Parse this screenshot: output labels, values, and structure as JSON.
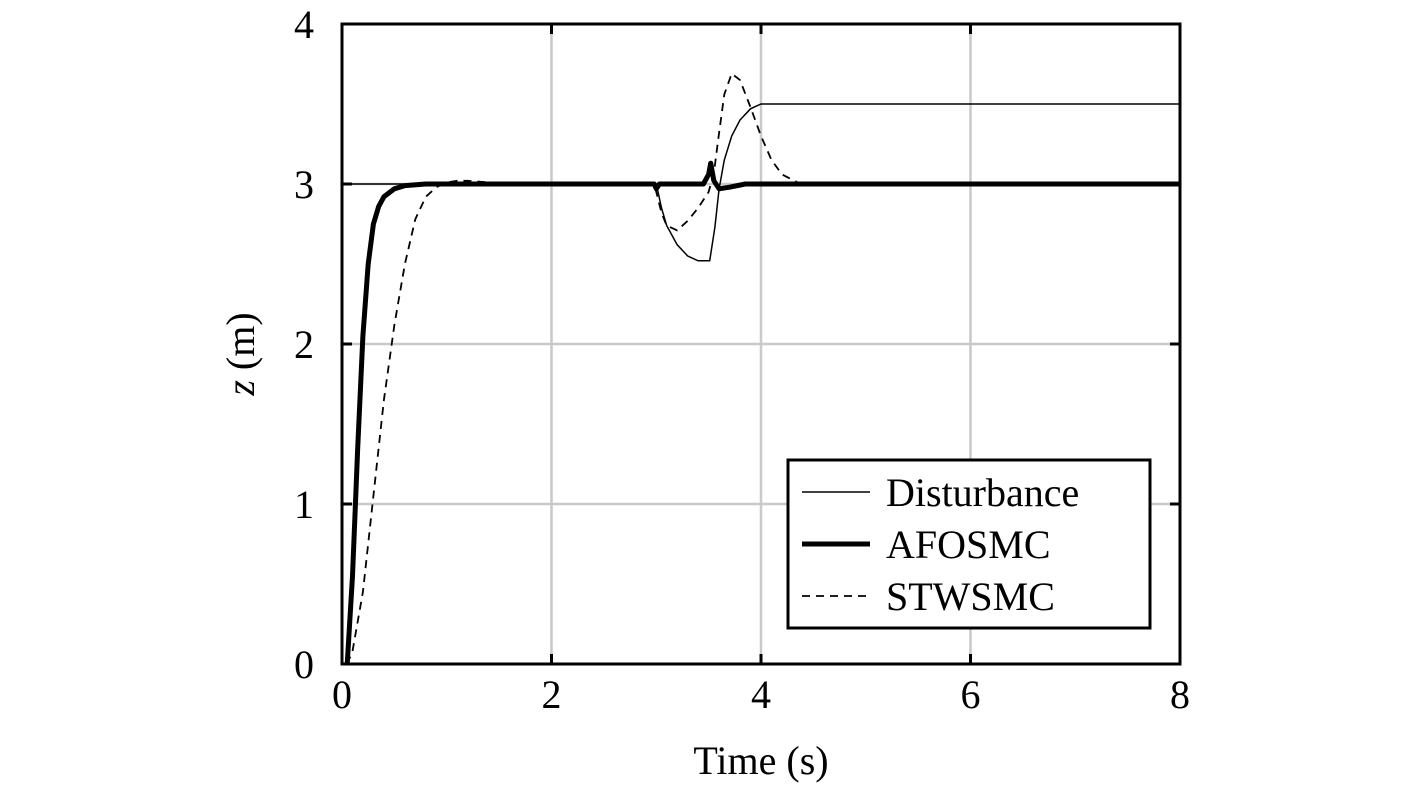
{
  "chart_data": {
    "type": "line",
    "title": "",
    "xlabel": "Time (s)",
    "ylabel": "z (m)",
    "xlabel_parts": {
      "text": "Time (s)"
    },
    "ylabel_parts": {
      "var": "z",
      "unit": " (m)"
    },
    "xlim": [
      0,
      8
    ],
    "ylim": [
      0,
      4
    ],
    "xticks": [
      0,
      2,
      4,
      6,
      8
    ],
    "yticks": [
      0,
      1,
      2,
      3,
      4
    ],
    "xtick_labels": [
      "0",
      "2",
      "4",
      "6",
      "8"
    ],
    "ytick_labels": [
      "0",
      "1",
      "2",
      "3",
      "4"
    ],
    "grid": true,
    "legend_position": "bottom-right",
    "series": [
      {
        "name": "Disturbance",
        "style": "thin-solid",
        "points": [
          [
            0,
            3.0
          ],
          [
            3.0,
            3.0
          ],
          [
            3.05,
            2.85
          ],
          [
            3.1,
            2.74
          ],
          [
            3.2,
            2.62
          ],
          [
            3.3,
            2.55
          ],
          [
            3.4,
            2.52
          ],
          [
            3.5,
            2.52
          ],
          [
            3.51,
            2.52
          ],
          [
            3.56,
            2.73
          ],
          [
            3.6,
            2.97
          ],
          [
            3.65,
            3.15
          ],
          [
            3.72,
            3.3
          ],
          [
            3.8,
            3.4
          ],
          [
            3.9,
            3.47
          ],
          [
            4.0,
            3.5
          ],
          [
            8.0,
            3.5
          ]
        ]
      },
      {
        "name": "AFOSMC",
        "style": "thick-solid",
        "points": [
          [
            0.05,
            0.0
          ],
          [
            0.1,
            0.55
          ],
          [
            0.15,
            1.35
          ],
          [
            0.2,
            2.05
          ],
          [
            0.25,
            2.5
          ],
          [
            0.3,
            2.75
          ],
          [
            0.35,
            2.86
          ],
          [
            0.4,
            2.92
          ],
          [
            0.5,
            2.97
          ],
          [
            0.6,
            2.99
          ],
          [
            0.8,
            3.0
          ],
          [
            2.98,
            3.0
          ],
          [
            3.0,
            2.97
          ],
          [
            3.03,
            3.0
          ],
          [
            3.45,
            3.0
          ],
          [
            3.5,
            3.06
          ],
          [
            3.52,
            3.13
          ],
          [
            3.55,
            3.02
          ],
          [
            3.6,
            2.97
          ],
          [
            3.7,
            2.98
          ],
          [
            3.85,
            3.0
          ],
          [
            8.0,
            3.0
          ]
        ]
      },
      {
        "name": "STWSMC",
        "style": "dashed",
        "points": [
          [
            0.05,
            0.0
          ],
          [
            0.1,
            0.08
          ],
          [
            0.2,
            0.45
          ],
          [
            0.3,
            1.05
          ],
          [
            0.4,
            1.65
          ],
          [
            0.5,
            2.12
          ],
          [
            0.6,
            2.5
          ],
          [
            0.7,
            2.78
          ],
          [
            0.8,
            2.92
          ],
          [
            0.9,
            2.98
          ],
          [
            1.0,
            3.01
          ],
          [
            1.1,
            3.02
          ],
          [
            1.2,
            3.02
          ],
          [
            1.4,
            3.01
          ],
          [
            1.6,
            3.0
          ],
          [
            2.98,
            3.0
          ],
          [
            3.0,
            2.95
          ],
          [
            3.05,
            2.82
          ],
          [
            3.1,
            2.74
          ],
          [
            3.2,
            2.71
          ],
          [
            3.3,
            2.77
          ],
          [
            3.4,
            2.85
          ],
          [
            3.5,
            2.95
          ],
          [
            3.55,
            3.07
          ],
          [
            3.6,
            3.32
          ],
          [
            3.65,
            3.56
          ],
          [
            3.72,
            3.69
          ],
          [
            3.8,
            3.65
          ],
          [
            3.9,
            3.48
          ],
          [
            4.0,
            3.3
          ],
          [
            4.1,
            3.15
          ],
          [
            4.2,
            3.06
          ],
          [
            4.35,
            3.01
          ],
          [
            4.5,
            3.0
          ],
          [
            8.0,
            3.0
          ]
        ]
      }
    ]
  }
}
